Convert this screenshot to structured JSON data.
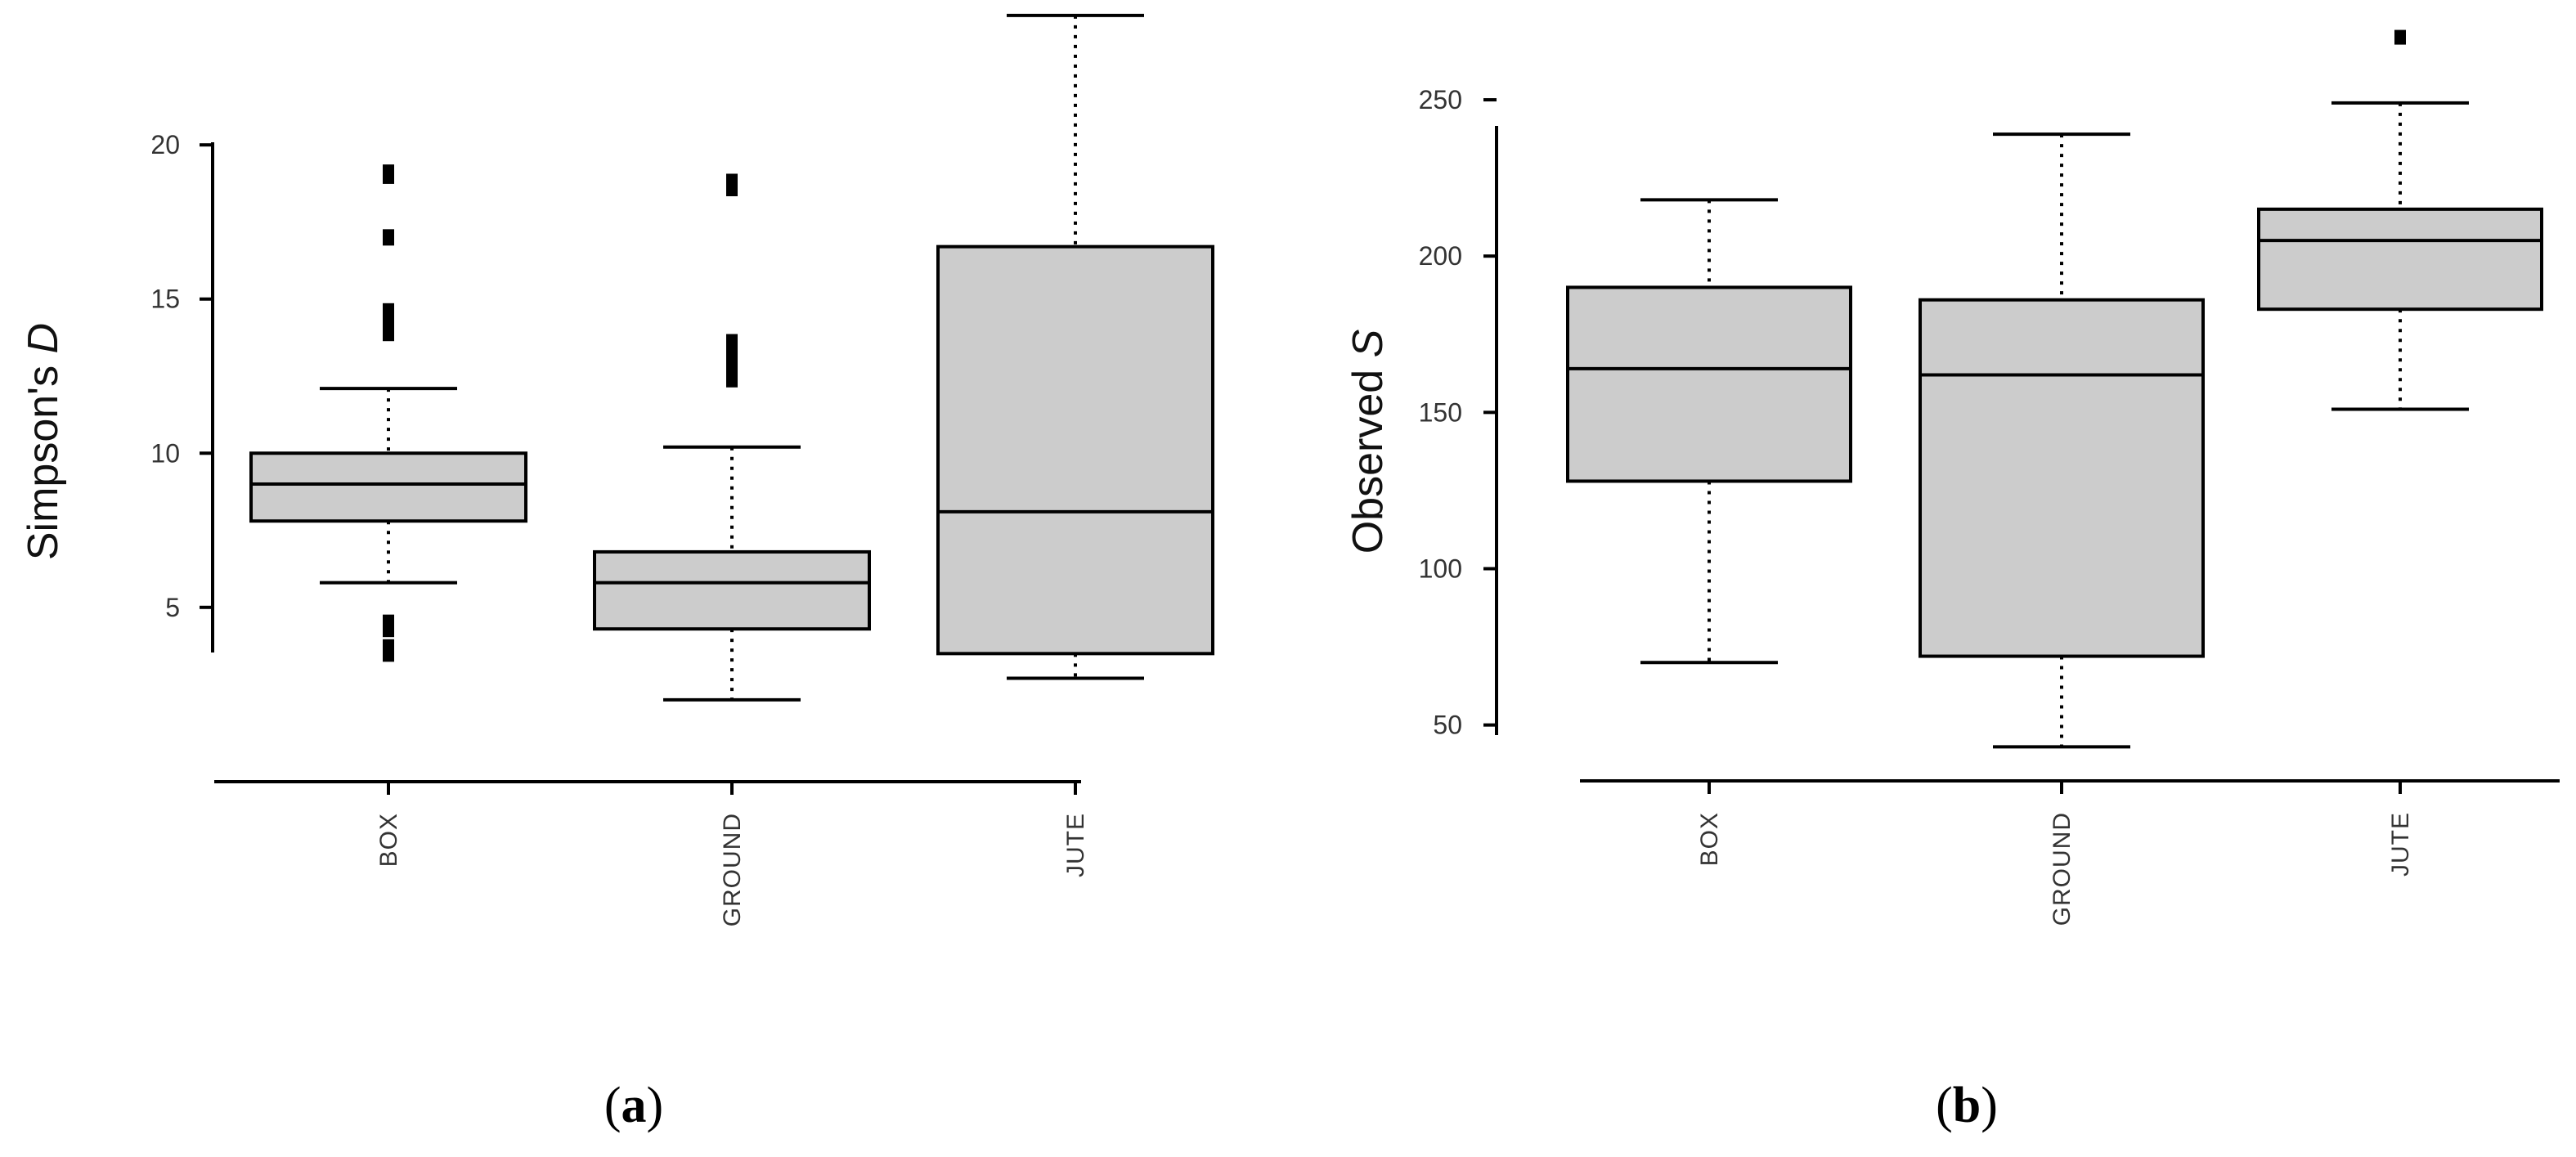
{
  "chart_data": [
    {
      "type": "box",
      "panel_label": "a",
      "ylabel_main": "Simpson's ",
      "ylabel_italic": "D",
      "xlabel": "",
      "ylim": [
        0.3,
        24.7
      ],
      "yticks": [
        5,
        10,
        15,
        20
      ],
      "grid": false,
      "categories": [
        "BOX",
        "GROUND",
        "JUTE"
      ],
      "boxes": [
        {
          "name": "BOX",
          "whisker_low": 5.8,
          "q1": 7.8,
          "median": 9.0,
          "q3": 10.0,
          "whisker_high": 12.1,
          "outliers": [
            19.1,
            19.0,
            17.0,
            14.6,
            14.3,
            14.0,
            13.9,
            4.5,
            4.3,
            3.7,
            3.5
          ]
        },
        {
          "name": "GROUND",
          "whisker_low": 2.0,
          "q1": 4.3,
          "median": 5.8,
          "q3": 6.8,
          "whisker_high": 10.2,
          "outliers": [
            18.8,
            18.6,
            13.6,
            13.3,
            13.0,
            12.7,
            12.4
          ]
        },
        {
          "name": "JUTE",
          "whisker_low": 2.7,
          "q1": 3.5,
          "median": 8.1,
          "q3": 16.7,
          "whisker_high": 24.2,
          "outliers": []
        }
      ]
    },
    {
      "type": "box",
      "panel_label": "b",
      "ylabel_main": "Observed ",
      "ylabel_italic": "S",
      "xlabel": "",
      "ylim": [
        35,
        278
      ],
      "yticks": [
        50,
        100,
        150,
        200,
        250
      ],
      "grid": false,
      "categories": [
        "BOX",
        "GROUND",
        "JUTE"
      ],
      "boxes": [
        {
          "name": "BOX",
          "whisker_low": 70,
          "q1": 128,
          "median": 164,
          "q3": 190,
          "whisker_high": 218,
          "outliers": []
        },
        {
          "name": "GROUND",
          "whisker_low": 43,
          "q1": 72,
          "median": 162,
          "q3": 186,
          "whisker_high": 239,
          "outliers": []
        },
        {
          "name": "JUTE",
          "whisker_low": 151,
          "q1": 183,
          "median": 205,
          "q3": 215,
          "whisker_high": 249,
          "outliers": [
            270
          ]
        }
      ]
    }
  ]
}
